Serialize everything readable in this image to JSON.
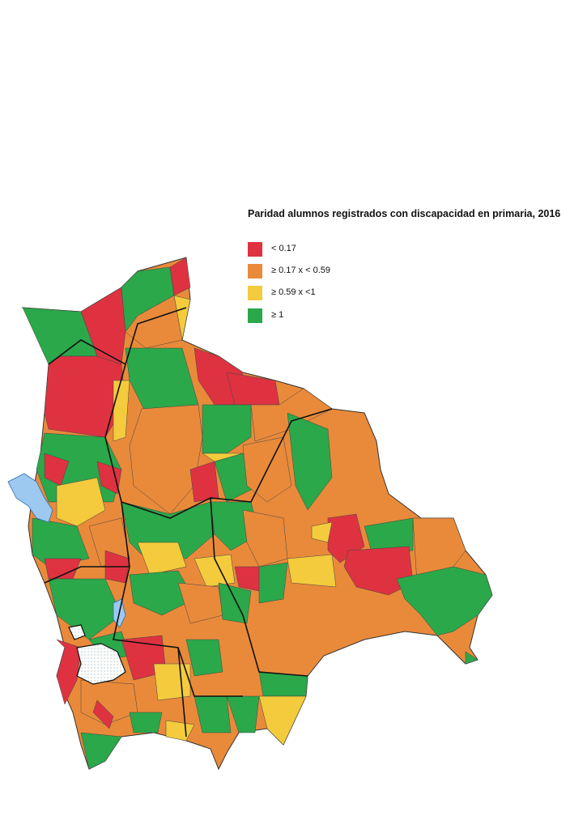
{
  "legend": {
    "title": "Paridad alumnos registrados con discapacidad en primaria, 2016",
    "items": [
      {
        "label": "< 0.17",
        "color": "#de3241"
      },
      {
        "label": "≥ 0.17 x < 0.59",
        "color": "#e98a3a"
      },
      {
        "label": "≥ 0.59 x <1",
        "color": "#f3cb3c"
      },
      {
        "label": "≥ 1",
        "color": "#2ba84a"
      }
    ]
  },
  "colors": {
    "lake": "#9dc8f0",
    "salt_flat": "#ffffff",
    "boundary": "#111111"
  }
}
